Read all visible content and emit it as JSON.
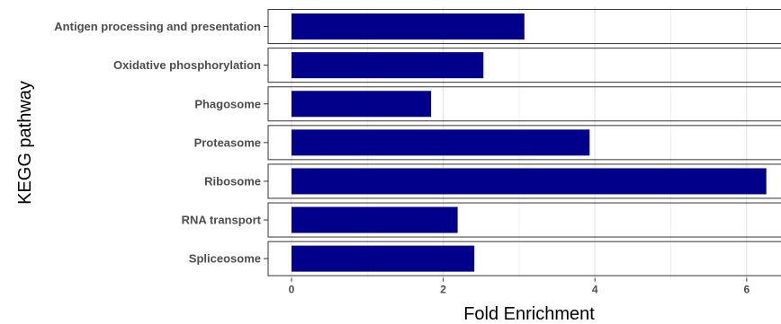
{
  "chart_data": {
    "type": "bar",
    "orientation": "horizontal",
    "categories": [
      "Antigen processing and presentation",
      "Oxidative phosphorylation",
      "Phagosome",
      "Proteasome",
      "Ribosome",
      "RNA transport",
      "Spliceosome"
    ],
    "values": [
      3.07,
      2.53,
      1.84,
      3.93,
      6.26,
      2.19,
      2.41
    ],
    "xlabel": "Fold Enrichment",
    "ylabel": "KEGG pathway",
    "xticks": [
      "0",
      "2",
      "4",
      "6"
    ],
    "xlim": [
      0,
      6.5
    ],
    "grid": true,
    "bar_color": "#00008b"
  }
}
